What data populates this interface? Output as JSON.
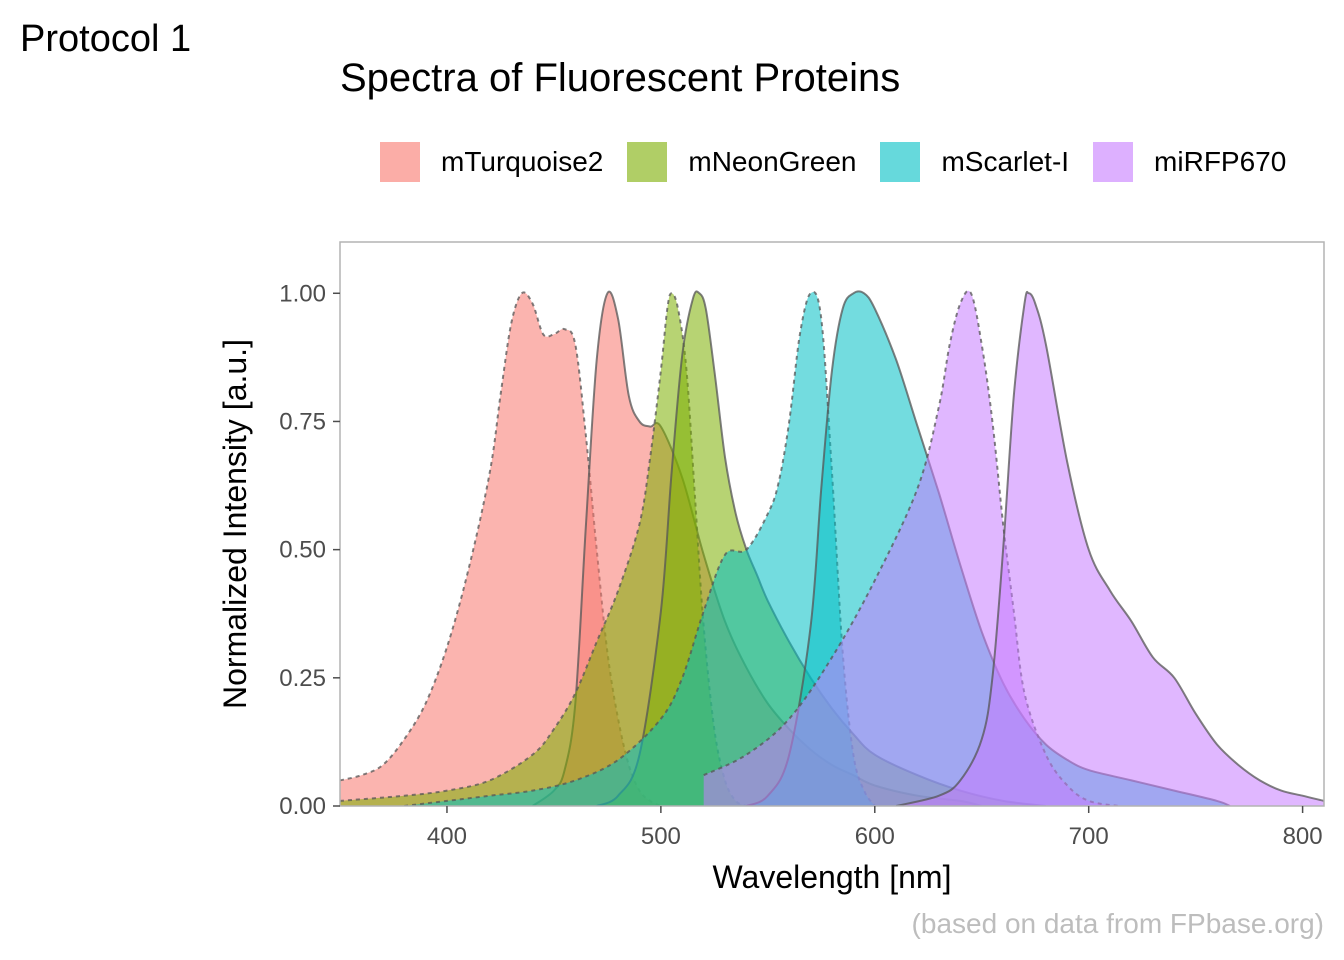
{
  "tag_label": "Protocol 1",
  "caption": "(based on data from FPbase.org)",
  "chart_data": {
    "type": "area",
    "title": "Spectra of Fluorescent Proteins",
    "xlabel": "Wavelength [nm]",
    "ylabel": "Normalized Intensity [a.u.]",
    "xlim": [
      350,
      810
    ],
    "ylim": [
      0,
      1.1
    ],
    "xticks": [
      400,
      500,
      600,
      700,
      800
    ],
    "yticks": [
      0.0,
      0.25,
      0.5,
      0.75,
      1.0
    ],
    "ytick_labels": [
      "0.00",
      "0.25",
      "0.50",
      "0.75",
      "1.00"
    ],
    "grid": false,
    "legend_position": "top",
    "series": [
      {
        "name": "mTurquoise2",
        "color": "#F8766D",
        "excitation": [
          [
            350,
            0.05
          ],
          [
            360,
            0.06
          ],
          [
            370,
            0.08
          ],
          [
            380,
            0.13
          ],
          [
            390,
            0.2
          ],
          [
            400,
            0.31
          ],
          [
            410,
            0.46
          ],
          [
            420,
            0.65
          ],
          [
            425,
            0.8
          ],
          [
            430,
            0.94
          ],
          [
            435,
            1.0
          ],
          [
            440,
            0.98
          ],
          [
            445,
            0.92
          ],
          [
            450,
            0.92
          ],
          [
            455,
            0.93
          ],
          [
            460,
            0.9
          ],
          [
            465,
            0.72
          ],
          [
            470,
            0.5
          ],
          [
            475,
            0.3
          ],
          [
            480,
            0.17
          ],
          [
            485,
            0.08
          ],
          [
            490,
            0.03
          ],
          [
            495,
            0.01
          ],
          [
            500,
            0.0
          ]
        ],
        "emission": [
          [
            440,
            0.0
          ],
          [
            450,
            0.03
          ],
          [
            455,
            0.07
          ],
          [
            460,
            0.2
          ],
          [
            465,
            0.55
          ],
          [
            470,
            0.87
          ],
          [
            475,
            1.0
          ],
          [
            480,
            0.95
          ],
          [
            485,
            0.8
          ],
          [
            490,
            0.75
          ],
          [
            495,
            0.74
          ],
          [
            500,
            0.74
          ],
          [
            510,
            0.64
          ],
          [
            520,
            0.49
          ],
          [
            530,
            0.36
          ],
          [
            540,
            0.27
          ],
          [
            550,
            0.2
          ],
          [
            560,
            0.15
          ],
          [
            570,
            0.11
          ],
          [
            580,
            0.08
          ],
          [
            590,
            0.06
          ],
          [
            600,
            0.04
          ],
          [
            620,
            0.02
          ],
          [
            640,
            0.01
          ],
          [
            650,
            0.0
          ]
        ]
      },
      {
        "name": "mNeonGreen",
        "color": "#7CAE00",
        "excitation": [
          [
            350,
            0.01
          ],
          [
            380,
            0.02
          ],
          [
            400,
            0.03
          ],
          [
            420,
            0.05
          ],
          [
            440,
            0.1
          ],
          [
            450,
            0.15
          ],
          [
            460,
            0.22
          ],
          [
            470,
            0.32
          ],
          [
            480,
            0.42
          ],
          [
            490,
            0.55
          ],
          [
            495,
            0.68
          ],
          [
            500,
            0.85
          ],
          [
            503,
            0.97
          ],
          [
            505,
            1.0
          ],
          [
            508,
            0.97
          ],
          [
            512,
            0.85
          ],
          [
            516,
            0.6
          ],
          [
            520,
            0.35
          ],
          [
            525,
            0.15
          ],
          [
            530,
            0.05
          ],
          [
            535,
            0.01
          ],
          [
            540,
            0.0
          ]
        ],
        "emission": [
          [
            470,
            0.0
          ],
          [
            480,
            0.02
          ],
          [
            490,
            0.1
          ],
          [
            500,
            0.38
          ],
          [
            505,
            0.65
          ],
          [
            510,
            0.88
          ],
          [
            515,
            0.99
          ],
          [
            518,
            1.0
          ],
          [
            521,
            0.97
          ],
          [
            525,
            0.85
          ],
          [
            530,
            0.68
          ],
          [
            535,
            0.57
          ],
          [
            540,
            0.5
          ],
          [
            545,
            0.45
          ],
          [
            550,
            0.4
          ],
          [
            560,
            0.32
          ],
          [
            570,
            0.25
          ],
          [
            580,
            0.19
          ],
          [
            590,
            0.14
          ],
          [
            600,
            0.1
          ],
          [
            620,
            0.06
          ],
          [
            640,
            0.03
          ],
          [
            660,
            0.01
          ],
          [
            680,
            0.0
          ]
        ]
      },
      {
        "name": "mScarlet-I",
        "color": "#00BFC4",
        "excitation": [
          [
            380,
            0.0
          ],
          [
            400,
            0.01
          ],
          [
            420,
            0.02
          ],
          [
            440,
            0.03
          ],
          [
            460,
            0.05
          ],
          [
            480,
            0.09
          ],
          [
            500,
            0.17
          ],
          [
            510,
            0.25
          ],
          [
            520,
            0.38
          ],
          [
            530,
            0.49
          ],
          [
            540,
            0.5
          ],
          [
            550,
            0.57
          ],
          [
            555,
            0.63
          ],
          [
            560,
            0.75
          ],
          [
            565,
            0.92
          ],
          [
            570,
            1.0
          ],
          [
            575,
            0.95
          ],
          [
            580,
            0.65
          ],
          [
            585,
            0.3
          ],
          [
            590,
            0.1
          ],
          [
            595,
            0.03
          ],
          [
            600,
            0.0
          ]
        ],
        "emission": [
          [
            540,
            0.0
          ],
          [
            550,
            0.02
          ],
          [
            560,
            0.1
          ],
          [
            570,
            0.35
          ],
          [
            575,
            0.62
          ],
          [
            580,
            0.85
          ],
          [
            585,
            0.97
          ],
          [
            590,
            1.0
          ],
          [
            595,
            1.0
          ],
          [
            600,
            0.97
          ],
          [
            610,
            0.87
          ],
          [
            620,
            0.74
          ],
          [
            630,
            0.61
          ],
          [
            640,
            0.47
          ],
          [
            650,
            0.34
          ],
          [
            660,
            0.24
          ],
          [
            670,
            0.17
          ],
          [
            680,
            0.12
          ],
          [
            690,
            0.09
          ],
          [
            700,
            0.07
          ],
          [
            720,
            0.05
          ],
          [
            740,
            0.03
          ],
          [
            760,
            0.01
          ],
          [
            766,
            0.0
          ]
        ]
      },
      {
        "name": "miRFP670",
        "color": "#C77CFF",
        "excitation": [
          [
            520,
            0.06
          ],
          [
            540,
            0.1
          ],
          [
            560,
            0.17
          ],
          [
            580,
            0.29
          ],
          [
            600,
            0.44
          ],
          [
            620,
            0.62
          ],
          [
            630,
            0.78
          ],
          [
            635,
            0.9
          ],
          [
            640,
            0.98
          ],
          [
            645,
            1.0
          ],
          [
            650,
            0.9
          ],
          [
            655,
            0.75
          ],
          [
            660,
            0.55
          ],
          [
            665,
            0.38
          ],
          [
            670,
            0.22
          ],
          [
            680,
            0.1
          ],
          [
            690,
            0.04
          ],
          [
            700,
            0.01
          ],
          [
            714,
            0.0
          ]
        ],
        "emission": [
          [
            610,
            0.0
          ],
          [
            630,
            0.02
          ],
          [
            640,
            0.05
          ],
          [
            650,
            0.13
          ],
          [
            655,
            0.25
          ],
          [
            660,
            0.5
          ],
          [
            665,
            0.8
          ],
          [
            670,
            0.98
          ],
          [
            672,
            1.0
          ],
          [
            675,
            0.98
          ],
          [
            680,
            0.9
          ],
          [
            690,
            0.67
          ],
          [
            700,
            0.5
          ],
          [
            710,
            0.42
          ],
          [
            720,
            0.36
          ],
          [
            730,
            0.29
          ],
          [
            740,
            0.25
          ],
          [
            750,
            0.18
          ],
          [
            760,
            0.12
          ],
          [
            770,
            0.08
          ],
          [
            780,
            0.05
          ],
          [
            790,
            0.03
          ],
          [
            800,
            0.02
          ],
          [
            810,
            0.01
          ]
        ]
      }
    ]
  }
}
